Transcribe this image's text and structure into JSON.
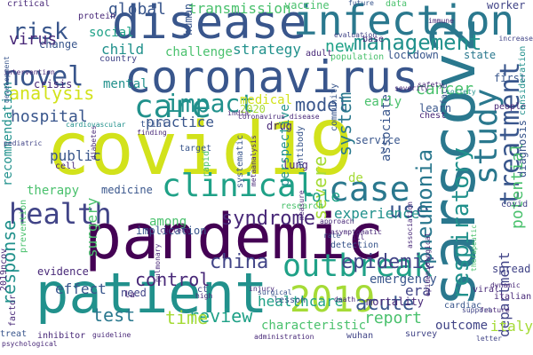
{
  "title": "",
  "palette": {
    "yellow": "#d2e21b",
    "lime": "#a5db36",
    "green": "#4ac16d",
    "teal": "#1fa187",
    "cyan": "#21918c",
    "blue": "#2a788e",
    "indigo": "#39568c",
    "purple": "#414487",
    "violet": "#482878",
    "dark": "#440154"
  },
  "words": [
    {
      "text": "covid19"
    },
    {
      "text": "pandemic"
    },
    {
      "text": "coronavirus"
    },
    {
      "text": "disease"
    },
    {
      "text": "infection"
    },
    {
      "text": "sarscov2"
    },
    {
      "text": "patient"
    },
    {
      "text": "health"
    },
    {
      "text": "clinical"
    },
    {
      "text": "outbreak"
    },
    {
      "text": "2019"
    },
    {
      "text": "case"
    },
    {
      "text": "study"
    },
    {
      "text": "treatment"
    },
    {
      "text": "novel"
    },
    {
      "text": "care"
    },
    {
      "text": "impact"
    },
    {
      "text": "management"
    },
    {
      "text": "respiratory"
    },
    {
      "text": "risk"
    },
    {
      "text": "analysis"
    },
    {
      "text": "use"
    },
    {
      "text": "severe"
    },
    {
      "text": "syndrome"
    },
    {
      "text": "epidemic"
    },
    {
      "text": "acute"
    },
    {
      "text": "china"
    },
    {
      "text": "review"
    },
    {
      "text": "control"
    },
    {
      "text": "time"
    },
    {
      "text": "test"
    },
    {
      "text": "report"
    },
    {
      "text": "pneumonia"
    },
    {
      "text": "potential"
    },
    {
      "text": "model"
    },
    {
      "text": "system"
    },
    {
      "text": "response"
    },
    {
      "text": "hospital"
    },
    {
      "text": "transmission"
    },
    {
      "text": "cancer"
    },
    {
      "text": "global"
    },
    {
      "text": "virus"
    },
    {
      "text": "new"
    },
    {
      "text": "experience"
    },
    {
      "text": "role"
    },
    {
      "text": "public"
    },
    {
      "text": "department"
    },
    {
      "text": "italy"
    },
    {
      "text": "surgery"
    },
    {
      "text": "practice"
    },
    {
      "text": "strategy"
    },
    {
      "text": "challenge"
    },
    {
      "text": "child"
    },
    {
      "text": "social"
    },
    {
      "text": "mental"
    },
    {
      "text": "therapy"
    },
    {
      "text": "recommendation"
    },
    {
      "text": "perspective"
    },
    {
      "text": "lung"
    },
    {
      "text": "effect"
    },
    {
      "text": "healthcare"
    },
    {
      "text": "among"
    },
    {
      "text": "emergency"
    },
    {
      "text": "characteristic"
    },
    {
      "text": "spread"
    },
    {
      "text": "outcome"
    },
    {
      "text": "associate"
    },
    {
      "text": "medical"
    },
    {
      "text": "2020"
    },
    {
      "text": "early"
    },
    {
      "text": "vaccine"
    },
    {
      "text": "worker"
    },
    {
      "text": "country"
    },
    {
      "text": "crisis"
    },
    {
      "text": "community"
    },
    {
      "text": "drug"
    },
    {
      "text": "mortality"
    },
    {
      "text": "survey"
    },
    {
      "text": "evidence"
    },
    {
      "text": "need"
    },
    {
      "text": "medicine"
    },
    {
      "text": "implication"
    },
    {
      "text": "era"
    },
    {
      "text": "de"
    },
    {
      "text": "service"
    },
    {
      "text": "learn"
    },
    {
      "text": "first"
    },
    {
      "text": "state"
    },
    {
      "text": "lockdown"
    },
    {
      "text": "population"
    },
    {
      "text": "adult"
    },
    {
      "text": "protein"
    },
    {
      "text": "change"
    },
    {
      "text": "human"
    },
    {
      "text": "data"
    },
    {
      "text": "immune"
    },
    {
      "text": "critical"
    },
    {
      "text": "evaluation"
    },
    {
      "text": "base"
    },
    {
      "text": "future"
    },
    {
      "text": "chest"
    },
    {
      "text": "face"
    },
    {
      "text": "people"
    },
    {
      "text": "diagnosis"
    },
    {
      "text": "consideration"
    },
    {
      "text": "increase"
    },
    {
      "text": "italian"
    },
    {
      "text": "covid"
    },
    {
      "text": "wuhan"
    },
    {
      "text": "lesson"
    },
    {
      "text": "rapid"
    },
    {
      "text": "trial"
    },
    {
      "text": "finding"
    },
    {
      "text": "cardiovascular"
    },
    {
      "text": "target"
    },
    {
      "text": "cell"
    },
    {
      "text": "diabetes"
    },
    {
      "text": "systematic"
    },
    {
      "text": "metaanalysis"
    },
    {
      "text": "antibody"
    },
    {
      "text": "detection"
    },
    {
      "text": "research"
    },
    {
      "text": "current"
    },
    {
      "text": "prevention"
    },
    {
      "text": "2019ncov"
    },
    {
      "text": "factor"
    },
    {
      "text": "inhibitor"
    },
    {
      "text": "guideline"
    },
    {
      "text": "treat"
    },
    {
      "text": "psychological"
    },
    {
      "text": "viral"
    },
    {
      "text": "cardiac"
    },
    {
      "text": "letter"
    },
    {
      "text": "therapeutic"
    },
    {
      "text": "feature"
    },
    {
      "text": "dynamic"
    },
    {
      "text": "approach"
    },
    {
      "text": "rate"
    },
    {
      "text": "association"
    },
    {
      "text": "measure"
    },
    {
      "text": "severity"
    },
    {
      "text": "india"
    },
    {
      "text": "intervention"
    },
    {
      "text": "development"
    },
    {
      "text": "pediatric"
    },
    {
      "text": "society"
    },
    {
      "text": "pulmonary"
    },
    {
      "text": "ct"
    },
    {
      "text": "la"
    },
    {
      "text": "injury"
    },
    {
      "text": "high"
    },
    {
      "text": "administration"
    },
    {
      "text": "asymptomatic"
    },
    {
      "text": "epidemiological"
    },
    {
      "text": "death"
    },
    {
      "text": "support"
    },
    {
      "text": "safety"
    },
    {
      "text": "ill"
    },
    {
      "text": "surgical"
    },
    {
      "text": "2"
    },
    {
      "text": "coronavirus disease"
    }
  ]
}
